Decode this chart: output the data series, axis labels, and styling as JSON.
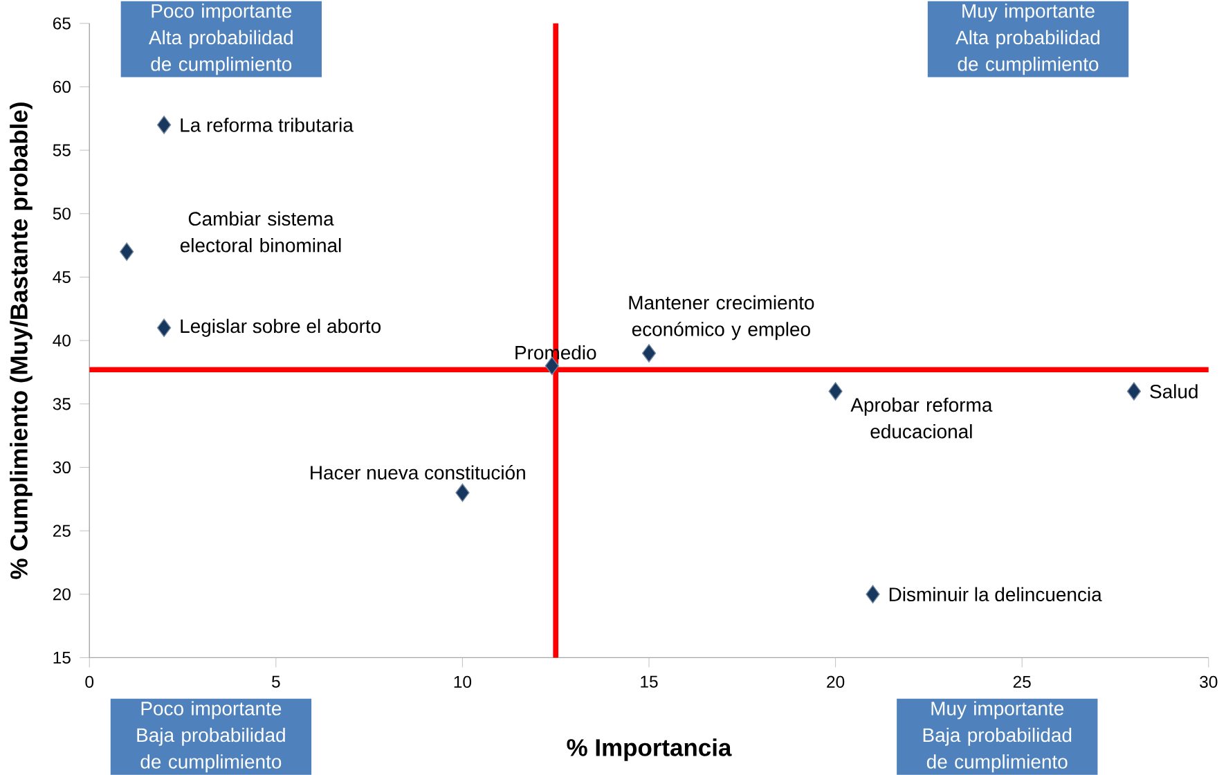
{
  "chart_data": {
    "type": "scatter",
    "xlabel": "% Importancia",
    "ylabel": "% Cumplimiento (Muy/Bastante probable)",
    "x": [
      2,
      1,
      2,
      12.4,
      15,
      20,
      28,
      10,
      21
    ],
    "series": [
      {
        "color": "#17375e",
        "values": [
          57,
          47,
          41,
          38,
          39,
          36,
          36,
          28,
          20
        ]
      }
    ],
    "xlim": [
      0,
      30
    ],
    "xticks": [
      0,
      5,
      10,
      15,
      20,
      25,
      30
    ],
    "ylim": [
      15,
      65
    ],
    "yticks": [
      15,
      20,
      25,
      30,
      35,
      40,
      45,
      50,
      55,
      60,
      65
    ],
    "marker": "diamond",
    "grid": false,
    "ref_lines": [
      {
        "axis": "x",
        "value": 12.5,
        "color": "#ff0000"
      },
      {
        "axis": "y",
        "value": 37.7,
        "color": "#ff0000"
      }
    ],
    "annotations": [
      {
        "text": "La reforma tributaria",
        "x": 2,
        "y": 57
      },
      {
        "text": "Cambiar sistema electoral binominal",
        "x": 1,
        "y": 47
      },
      {
        "text": "Legislar sobre el aborto",
        "x": 2,
        "y": 41
      },
      {
        "text": "Promedio",
        "x": 12.4,
        "y": 38
      },
      {
        "text": "Mantener crecimiento económico y empleo",
        "x": 15,
        "y": 39
      },
      {
        "text": "Aprobar reforma educacional",
        "x": 20,
        "y": 36
      },
      {
        "text": "Salud",
        "x": 28,
        "y": 36
      },
      {
        "text": "Hacer nueva constitución",
        "x": 10,
        "y": 28
      },
      {
        "text": "Disminuir la delincuencia",
        "x": 21,
        "y": 20
      },
      "Poco importante Alta probabilidad de cumplimiento",
      "Muy importante Alta probabilidad de cumplimiento",
      "Poco importante Baja probabilidad de cumplimiento",
      "Muy importante Baja probabilidad de cumplimiento"
    ]
  }
}
